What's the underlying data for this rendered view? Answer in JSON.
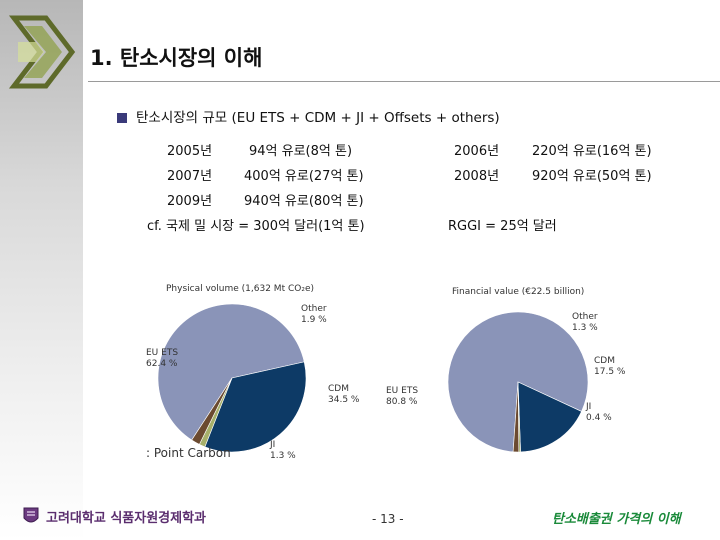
{
  "header": {
    "title": "1. 탄소시장의 이해"
  },
  "bullet": {
    "text": "탄소시장의 규모 (EU ETS + CDM + JI + Offsets + others)"
  },
  "market_rows": [
    {
      "year": "2005년",
      "value": "94억 유로(8억 톤)"
    },
    {
      "year": "2006년",
      "value": "220억 유로(16억 톤)"
    },
    {
      "year": "2007년",
      "value": "400억 유로(27억 톤)"
    },
    {
      "year": "2008년",
      "value": "920억 유로(50억 톤)"
    },
    {
      "year": "2009년",
      "value": "940억 유로(80억 톤)"
    }
  ],
  "notes": {
    "cf": "cf. 국제 밀 시장 = 300억 달러(1억 톤)",
    "rggi": "RGGI = 25억 달러"
  },
  "chart_data": [
    {
      "type": "pie",
      "title": "Physical volume (1,632 Mt CO₂e)",
      "labels": [
        "EU ETS\n62.4 %",
        "CDM\n34.5 %",
        "JI\n1.3 %",
        "Other\n1.9 %"
      ],
      "categories": [
        "EU ETS",
        "CDM",
        "JI",
        "Other"
      ],
      "values": [
        62.4,
        34.5,
        1.3,
        1.9
      ],
      "colors": [
        "#8a94b8",
        "#0d3a66",
        "#a7b06a",
        "#6b4a30"
      ]
    },
    {
      "type": "pie",
      "title": "Financial value (€22.5 billion)",
      "labels": [
        "EU ETS\n80.8 %",
        "CDM\n17.5 %",
        "JI\n0.4 %",
        "Other\n1.3 %"
      ],
      "categories": [
        "EU ETS",
        "CDM",
        "JI",
        "Other"
      ],
      "values": [
        80.8,
        17.5,
        0.4,
        1.3
      ],
      "colors": [
        "#8a94b8",
        "#0d3a66",
        "#a7b06a",
        "#6b4a30"
      ]
    }
  ],
  "source": ": Point Carbon",
  "footer": {
    "org": "고려대학교 식품자원경제학과",
    "page": "- 13 -",
    "topic": "탄소배출권 가격의 이해"
  }
}
